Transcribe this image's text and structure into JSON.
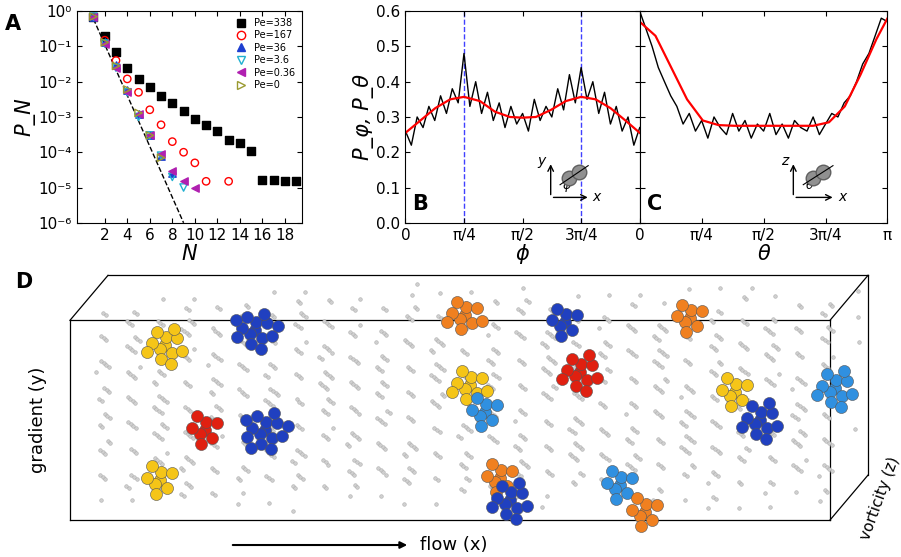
{
  "chart_data": [
    {
      "type": "scatter",
      "title": "A",
      "xlabel": "N",
      "ylabel": "P_N",
      "log": "y",
      "xlim": [
        -0.5,
        19.5
      ],
      "xticks": [
        2,
        4,
        6,
        8,
        10,
        12,
        14,
        16,
        18
      ],
      "ylim": [
        1e-06,
        1
      ],
      "yticks": [
        {
          "value": 1e-06,
          "label": "10⁻⁶"
        },
        {
          "value": 1e-05,
          "label": "10⁻⁵"
        },
        {
          "value": 0.0001,
          "label": "10⁻⁴"
        },
        {
          "value": 0.001,
          "label": "10⁻³"
        },
        {
          "value": 0.01,
          "label": "10⁻²"
        },
        {
          "value": 0.1,
          "label": "10⁻¹"
        },
        {
          "value": 1,
          "label": "10⁰"
        }
      ],
      "legend": "upper right",
      "series": [
        {
          "name": "Pe=338",
          "color": "#000000",
          "marker": "square",
          "x": [
            1,
            2,
            3,
            4,
            5,
            6,
            7,
            8,
            9,
            10,
            11,
            12,
            13,
            14,
            15,
            16,
            17,
            18,
            19
          ],
          "values": [
            0.7,
            0.2,
            0.07,
            0.025,
            0.012,
            0.007,
            0.004,
            0.0025,
            0.0015,
            0.0009,
            0.0006,
            0.0004,
            0.00022,
            0.00018,
            0.00011,
            1.6e-05,
            1.6e-05,
            1.5e-05,
            1.5e-05
          ]
        },
        {
          "name": "Pe=167",
          "color": "#ff0000",
          "marker": "circle_open",
          "x": [
            1,
            2,
            3,
            4,
            5,
            6,
            7,
            8,
            9,
            10,
            11,
            13
          ],
          "values": [
            0.7,
            0.15,
            0.04,
            0.012,
            0.005,
            0.0016,
            0.0006,
            0.0002,
            0.0001,
            5e-05,
            1.5e-05,
            1.5e-05
          ]
        },
        {
          "name": "Pe=36",
          "color": "#1e3fd0",
          "marker": "triangle_up",
          "x": [
            1,
            2,
            3,
            4,
            5,
            6,
            7,
            8
          ],
          "values": [
            0.7,
            0.13,
            0.03,
            0.006,
            0.0012,
            0.0003,
            8e-05,
            2.5e-05
          ]
        },
        {
          "name": "Pe=3.6",
          "color": "#20b0d0",
          "marker": "triangle_down_open",
          "x": [
            1,
            2,
            3,
            4,
            5,
            6,
            7,
            8,
            9
          ],
          "values": [
            0.7,
            0.12,
            0.025,
            0.005,
            0.001,
            0.0003,
            8e-05,
            2e-05,
            1e-05
          ]
        },
        {
          "name": "Pe=0.36",
          "color": "#b020b0",
          "marker": "triangle_left",
          "x": [
            1,
            2,
            3,
            4,
            5,
            6,
            7,
            8,
            9,
            10
          ],
          "values": [
            0.7,
            0.12,
            0.025,
            0.005,
            0.0012,
            0.0003,
            9e-05,
            3e-05,
            1.5e-05,
            1e-05
          ]
        },
        {
          "name": "Pe=0",
          "color": "#9a9a30",
          "marker": "triangle_right_open",
          "x": [
            1,
            2,
            3,
            4,
            5,
            6,
            7
          ],
          "values": [
            0.7,
            0.13,
            0.028,
            0.006,
            0.0013,
            0.0003,
            7e-05
          ]
        },
        {
          "type": "line",
          "color": "#000000",
          "line_style": "dashed",
          "x": [
            1,
            9
          ],
          "values": [
            0.6,
            1e-06
          ]
        }
      ]
    },
    {
      "type": "line",
      "title": "B",
      "xlabel": "ϕ",
      "ylabel": "P_φ, P_θ",
      "xlim": [
        0,
        3.141593
      ],
      "xticks": [
        0,
        {
          "value": 0.785398,
          "label": "π/4"
        },
        {
          "value": 1.570796,
          "label": "π/2"
        },
        {
          "value": 2.356194,
          "label": "3π/4"
        }
      ],
      "ylim": [
        0.0,
        0.6
      ],
      "yticks": [
        0.0,
        0.1,
        0.2,
        0.3,
        0.4,
        0.5,
        0.6
      ],
      "vlines": {
        "values": [
          0.785398,
          2.356194
        ],
        "color": "#4040ff",
        "line_style": "dashed"
      },
      "inset": {
        "vertical_axis": "y",
        "horizontal_axis": "x",
        "angle": "ϕ"
      },
      "series": [
        {
          "color": "#000000",
          "line_style": "solid",
          "x": [
            0,
            0.079,
            0.157,
            0.236,
            0.314,
            0.393,
            0.471,
            0.55,
            0.628,
            0.707,
            0.785,
            0.864,
            0.942,
            1.021,
            1.1,
            1.178,
            1.257,
            1.335,
            1.414,
            1.492,
            1.571,
            1.649,
            1.728,
            1.806,
            1.885,
            1.963,
            2.042,
            2.121,
            2.199,
            2.278,
            2.356,
            2.435,
            2.513,
            2.592,
            2.67,
            2.749,
            2.827,
            2.906,
            2.985,
            3.063,
            3.142
          ],
          "values": [
            0.26,
            0.22,
            0.3,
            0.27,
            0.33,
            0.29,
            0.36,
            0.31,
            0.38,
            0.34,
            0.48,
            0.33,
            0.4,
            0.31,
            0.37,
            0.29,
            0.34,
            0.27,
            0.33,
            0.28,
            0.31,
            0.26,
            0.35,
            0.29,
            0.33,
            0.3,
            0.38,
            0.32,
            0.42,
            0.34,
            0.44,
            0.35,
            0.4,
            0.31,
            0.37,
            0.28,
            0.33,
            0.26,
            0.3,
            0.22,
            0.27
          ]
        },
        {
          "color": "#ff0000",
          "line_style": "solid",
          "x": [
            0,
            0.2,
            0.4,
            0.6,
            0.785,
            1.0,
            1.2,
            1.4,
            1.571,
            1.75,
            1.95,
            2.15,
            2.356,
            2.55,
            2.75,
            2.95,
            3.142
          ],
          "values": [
            0.255,
            0.29,
            0.325,
            0.35,
            0.357,
            0.345,
            0.315,
            0.3,
            0.298,
            0.3,
            0.32,
            0.345,
            0.357,
            0.35,
            0.325,
            0.29,
            0.255
          ]
        }
      ]
    },
    {
      "type": "line",
      "title": "C",
      "xlabel": "θ",
      "tick_labels": "x",
      "xlim": [
        0,
        3.141593
      ],
      "xticks": [
        0,
        {
          "value": 0.785398,
          "label": "π/4"
        },
        {
          "value": 1.570796,
          "label": "π/2"
        },
        {
          "value": 2.356194,
          "label": "3π/4"
        },
        {
          "value": 3.141593,
          "label": "π"
        }
      ],
      "ylim": [
        0.0,
        0.6
      ],
      "yticks": [
        0.0,
        0.1,
        0.2,
        0.3,
        0.4,
        0.5,
        0.6
      ],
      "inset": {
        "vertical_axis": "z",
        "horizontal_axis": "x",
        "angle": "θ"
      },
      "series": [
        {
          "color": "#000000",
          "line_style": "solid",
          "x": [
            0,
            0.079,
            0.157,
            0.236,
            0.314,
            0.393,
            0.471,
            0.55,
            0.628,
            0.707,
            0.785,
            0.864,
            0.942,
            1.021,
            1.1,
            1.178,
            1.257,
            1.335,
            1.414,
            1.492,
            1.571,
            1.649,
            1.728,
            1.806,
            1.885,
            1.963,
            2.042,
            2.121,
            2.199,
            2.278,
            2.356,
            2.435,
            2.513,
            2.592,
            2.67,
            2.749,
            2.827,
            2.906,
            2.985,
            3.063,
            3.142
          ],
          "values": [
            0.6,
            0.55,
            0.5,
            0.44,
            0.4,
            0.36,
            0.33,
            0.28,
            0.31,
            0.26,
            0.29,
            0.24,
            0.3,
            0.27,
            0.25,
            0.31,
            0.26,
            0.29,
            0.24,
            0.28,
            0.26,
            0.31,
            0.25,
            0.28,
            0.24,
            0.29,
            0.27,
            0.26,
            0.3,
            0.25,
            0.28,
            0.31,
            0.3,
            0.34,
            0.36,
            0.4,
            0.45,
            0.48,
            0.53,
            0.58,
            0.57
          ]
        },
        {
          "color": "#ff0000",
          "line_style": "solid",
          "x": [
            0,
            0.2,
            0.4,
            0.6,
            0.8,
            1.0,
            1.2,
            2.2,
            2.4,
            2.6,
            2.8,
            3.0,
            3.142
          ],
          "values": [
            0.57,
            0.53,
            0.44,
            0.35,
            0.29,
            0.277,
            0.275,
            0.275,
            0.285,
            0.33,
            0.42,
            0.52,
            0.58
          ]
        }
      ]
    }
  ],
  "diagram": {
    "title": "D",
    "axis_labels": {
      "vertical": "gradient (y)",
      "depth": "vorticity (z)",
      "flow": "flow (x)"
    }
  }
}
